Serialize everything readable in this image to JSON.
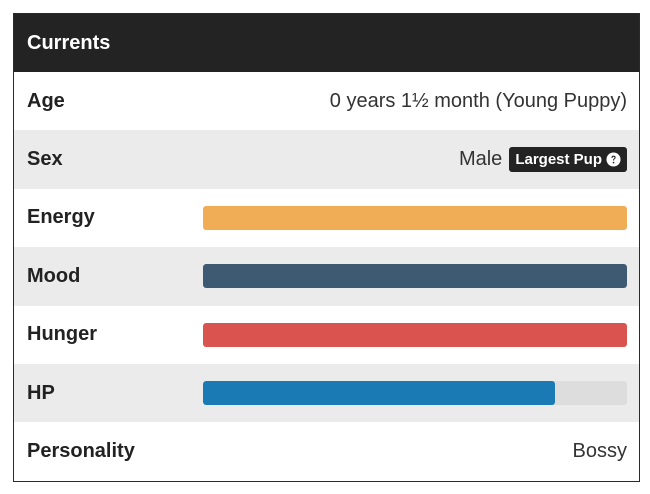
{
  "header": {
    "title": "Currents"
  },
  "rows": {
    "age": {
      "label": "Age",
      "value": "0 years 1½ month (Young Puppy)"
    },
    "sex": {
      "label": "Sex",
      "value": "Male",
      "badge": "Largest Pup"
    },
    "personality": {
      "label": "Personality",
      "value": "Bossy"
    }
  },
  "bar_scale": [
    0,
    100
  ],
  "bars": [
    {
      "label": "Energy",
      "value": 100,
      "color": "#f0ad55"
    },
    {
      "label": "Mood",
      "value": 100,
      "color": "#3d5a72"
    },
    {
      "label": "Hunger",
      "value": 100,
      "color": "#d9534f"
    },
    {
      "label": "HP",
      "value": 83,
      "color": "#1a7ab4"
    }
  ]
}
